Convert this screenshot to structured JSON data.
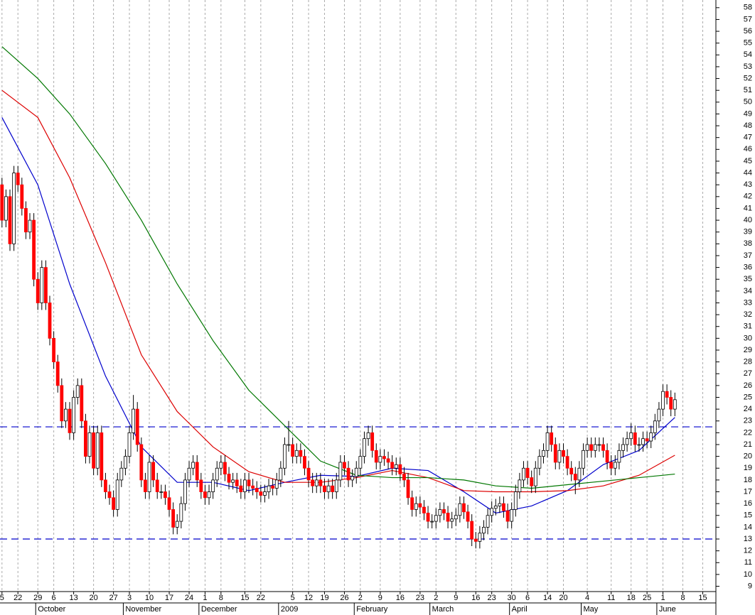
{
  "chart_data": {
    "type": "candlestick",
    "xlim": [
      -0.5,
      179.3
    ],
    "ylim": [
      8.55,
      58.65
    ],
    "yticks": [
      9,
      10,
      11,
      12,
      13,
      14,
      15,
      16,
      17,
      18,
      19,
      20,
      21,
      22,
      23,
      24,
      25,
      26,
      27,
      28,
      29,
      30,
      31,
      32,
      33,
      34,
      35,
      36,
      37,
      38,
      39,
      40,
      41,
      42,
      43,
      44,
      45,
      46,
      47,
      48,
      49,
      50,
      51,
      52,
      53,
      54,
      55,
      56,
      57,
      58
    ],
    "xticks": [
      {
        "value": 0,
        "label": "5"
      },
      {
        "value": 4,
        "label": "22"
      },
      {
        "value": 9,
        "label": "29"
      },
      {
        "value": 13,
        "label": "6"
      },
      {
        "value": 18,
        "label": "13"
      },
      {
        "value": 23,
        "label": "20"
      },
      {
        "value": 28,
        "label": "27"
      },
      {
        "value": 32,
        "label": "3"
      },
      {
        "value": 37,
        "label": "10"
      },
      {
        "value": 42,
        "label": "17"
      },
      {
        "value": 47,
        "label": "24"
      },
      {
        "value": 51,
        "label": "1"
      },
      {
        "value": 55,
        "label": "8"
      },
      {
        "value": 61,
        "label": "15"
      },
      {
        "value": 65,
        "label": "22"
      },
      {
        "value": 73,
        "label": "5"
      },
      {
        "value": 77,
        "label": "12"
      },
      {
        "value": 81,
        "label": "19"
      },
      {
        "value": 86,
        "label": "26"
      },
      {
        "value": 90,
        "label": "2"
      },
      {
        "value": 95,
        "label": "9"
      },
      {
        "value": 100,
        "label": "16"
      },
      {
        "value": 105,
        "label": "23"
      },
      {
        "value": 109,
        "label": "2"
      },
      {
        "value": 114,
        "label": "9"
      },
      {
        "value": 119,
        "label": "16"
      },
      {
        "value": 123,
        "label": "23"
      },
      {
        "value": 128,
        "label": "30"
      },
      {
        "value": 132,
        "label": "6"
      },
      {
        "value": 137,
        "label": "14"
      },
      {
        "value": 141,
        "label": "20"
      },
      {
        "value": 147,
        "label": "4"
      },
      {
        "value": 153,
        "label": "11"
      },
      {
        "value": 158,
        "label": "18"
      },
      {
        "value": 162,
        "label": "25"
      },
      {
        "value": 166,
        "label": "1"
      },
      {
        "value": 171,
        "label": "8"
      },
      {
        "value": 176,
        "label": "15"
      }
    ],
    "month_labels": [
      {
        "value": 9,
        "label": "October"
      },
      {
        "value": 31,
        "label": "November"
      },
      {
        "value": 50,
        "label": "December"
      },
      {
        "value": 70,
        "label": "2009"
      },
      {
        "value": 89,
        "label": "February"
      },
      {
        "value": 108,
        "label": "March"
      },
      {
        "value": 128,
        "label": "April"
      },
      {
        "value": 146,
        "label": "May"
      },
      {
        "value": 165,
        "label": "June"
      }
    ],
    "up_color": "#ffffff",
    "down_color": "#ff0000",
    "grid": true,
    "open": [
      43,
      40,
      42,
      38,
      44,
      43,
      41,
      39,
      40,
      35,
      33,
      36,
      33,
      30,
      28,
      26,
      23,
      24,
      22,
      25,
      26,
      23,
      20,
      22,
      19,
      22,
      18,
      17,
      16.5,
      15.5,
      18,
      19,
      20,
      22,
      24,
      21,
      18,
      17,
      19.5,
      18,
      17,
      17,
      16.5,
      15.5,
      14,
      14.5,
      16,
      18,
      19,
      19.5,
      18,
      17,
      16.5,
      17,
      18,
      19,
      19.5,
      18.5,
      17.8,
      18,
      17.5,
      17,
      18,
      17.5,
      17.3,
      17,
      16.7,
      17,
      17.5,
      17.3,
      18,
      19,
      21,
      21,
      20,
      20.5,
      20,
      19,
      18,
      17.5,
      18,
      17.5,
      17,
      17.5,
      17,
      18,
      19.5,
      19,
      18,
      18.3,
      19,
      20,
      21.5,
      22,
      20.5,
      19.5,
      20,
      19.8,
      19.5,
      19,
      19.3,
      18.5,
      18,
      16.5,
      15.5,
      16,
      15.7,
      15.2,
      14.5,
      14.5,
      15,
      15.5,
      15.2,
      14.5,
      14.7,
      15,
      16,
      15.3,
      14.5,
      13,
      12.8,
      13.5,
      14,
      15,
      15.6,
      15.8,
      16,
      15.4,
      14.5,
      15.5,
      17,
      18,
      19,
      18.2,
      17.5,
      19,
      20,
      20.5,
      22,
      21,
      19.5,
      20.5,
      20,
      19,
      18.5,
      18,
      19,
      20.5,
      21,
      20.5,
      21,
      21,
      20.5,
      19.5,
      19,
      19.5,
      20.5,
      21,
      21.5,
      22,
      21,
      21,
      21.5,
      21.3,
      22,
      23,
      24,
      25.5,
      25,
      24
    ],
    "high": [
      43.6,
      42.6,
      42.6,
      44.6,
      44.6,
      43.6,
      41.6,
      40.6,
      40.6,
      35.6,
      36.6,
      36.6,
      33.6,
      30.6,
      28.6,
      26.6,
      24.6,
      24.6,
      25.6,
      26.6,
      26.6,
      23.6,
      22.6,
      22.6,
      22.6,
      22.6,
      18.6,
      17.6,
      17.1,
      18.6,
      19.6,
      20.6,
      22.6,
      25.2,
      24.6,
      21.6,
      18.6,
      20.1,
      20.1,
      18.6,
      17.6,
      17.6,
      17.1,
      16.1,
      15.1,
      16.6,
      18.6,
      19.6,
      20.1,
      20.1,
      18.6,
      17.6,
      17.6,
      18.6,
      19.6,
      20.1,
      20.1,
      19.1,
      18.6,
      18.6,
      18.1,
      18.6,
      18.6,
      18.1,
      17.9,
      17.6,
      17.6,
      18.1,
      18.1,
      18.6,
      19.6,
      21.6,
      23,
      21.6,
      21.1,
      21.1,
      20.6,
      19.6,
      18.6,
      18.6,
      18.6,
      18.1,
      18.1,
      18.1,
      18.6,
      20.1,
      20.1,
      19.6,
      18.9,
      19.6,
      20.6,
      22.1,
      22.6,
      22.6,
      21.1,
      20.6,
      20.6,
      20.4,
      20.1,
      19.9,
      19.9,
      19.1,
      18.6,
      17.1,
      16.6,
      16.6,
      16.3,
      15.8,
      15.1,
      15.6,
      16.1,
      16.1,
      15.8,
      15.3,
      15.6,
      16.6,
      16.6,
      15.9,
      15.1,
      13.6,
      14.1,
      14.6,
      15.6,
      16.2,
      16.4,
      16.6,
      16.6,
      16,
      16.1,
      17.6,
      18.6,
      19.6,
      19.6,
      18.8,
      19.6,
      20.6,
      21.1,
      22.6,
      22.6,
      21.6,
      21.1,
      21.1,
      20.6,
      19.6,
      19.1,
      19.6,
      21.1,
      21.6,
      21.6,
      21.6,
      21.6,
      21.6,
      21.1,
      20.1,
      20.1,
      21.1,
      21.6,
      22.1,
      22.8,
      22.6,
      21.6,
      22.1,
      22.1,
      22.6,
      23.6,
      24.6,
      26.1,
      26.1,
      25.6,
      25.4
    ],
    "low": [
      39.4,
      39.4,
      37.4,
      37.4,
      42.4,
      40.4,
      38.4,
      38.4,
      34.4,
      32.4,
      32.4,
      32.4,
      29.4,
      27.4,
      25.4,
      22.4,
      22.4,
      21.4,
      21.4,
      24.4,
      22.4,
      19.4,
      19.4,
      18.4,
      18.4,
      17.4,
      16.4,
      15.9,
      14.9,
      14.9,
      17.4,
      18.4,
      19.4,
      21.4,
      20.4,
      17.4,
      16.4,
      16.4,
      17.4,
      16.4,
      16.4,
      15.9,
      14.9,
      13.4,
      13.4,
      13.9,
      15.4,
      17.4,
      18.4,
      17.4,
      16.4,
      15.9,
      15.9,
      16.4,
      17.4,
      18.4,
      17.9,
      17.2,
      17.2,
      16.9,
      16.4,
      16.4,
      16.9,
      16.7,
      16.4,
      16.1,
      16.1,
      16.4,
      16.7,
      16.7,
      17.4,
      18.4,
      20.4,
      19.4,
      19.4,
      19.4,
      18.4,
      17.4,
      16.9,
      16.9,
      16.9,
      16.4,
      16.4,
      16.4,
      16.4,
      17.4,
      18.4,
      17.4,
      17.4,
      17.7,
      18.4,
      19.4,
      20.9,
      19.9,
      18.9,
      18.9,
      19.2,
      18.9,
      18.4,
      18.4,
      17.9,
      17.4,
      15.9,
      14.9,
      14.9,
      15.1,
      14.6,
      13.9,
      13.9,
      13.9,
      14.4,
      14.6,
      13.9,
      13.9,
      14.1,
      14.4,
      14.7,
      13.9,
      12.4,
      12.2,
      12.2,
      12.9,
      13.4,
      14.4,
      15,
      15.2,
      14.8,
      13.9,
      13.9,
      14.9,
      16.4,
      17.4,
      17.6,
      16.9,
      16.9,
      18.4,
      19.4,
      19.9,
      20.4,
      18.9,
      18.9,
      19.4,
      18.4,
      17.9,
      16.8,
      17.4,
      18.4,
      19.9,
      19.9,
      19.9,
      20.4,
      19.9,
      18.9,
      18.4,
      18.4,
      18.9,
      19.9,
      20.4,
      20.9,
      20.4,
      20.4,
      20.4,
      20.7,
      20.7,
      21.4,
      22.4,
      23.4,
      24.4,
      23.4,
      23.4
    ],
    "close": [
      40,
      42,
      38,
      44,
      43,
      41,
      39,
      40,
      35,
      33,
      36,
      33,
      30,
      28,
      26,
      23,
      24,
      22,
      25,
      26,
      23,
      20,
      22,
      19,
      22,
      18,
      17,
      16.5,
      15.5,
      18,
      19,
      20,
      22,
      24,
      21,
      18,
      17,
      19.5,
      18,
      17,
      17,
      16.5,
      15.5,
      14,
      14.5,
      16,
      18,
      19,
      19.5,
      18,
      17,
      16.5,
      17,
      18,
      19,
      19.5,
      18.5,
      17.8,
      18,
      17.5,
      17,
      18,
      17.5,
      17.3,
      17,
      16.7,
      17,
      17.5,
      17.3,
      18,
      19,
      21,
      21,
      20,
      20.5,
      20,
      19,
      18,
      17.5,
      18,
      17.5,
      17,
      17.5,
      17,
      18,
      19.5,
      19,
      18,
      18.3,
      19,
      20,
      21.5,
      22,
      20.5,
      19.5,
      20,
      19.8,
      19.5,
      19,
      19.3,
      18.5,
      18,
      16.5,
      15.5,
      16,
      15.7,
      15.2,
      14.5,
      14.5,
      15,
      15.5,
      15.2,
      14.5,
      14.7,
      15,
      16,
      15.3,
      14.5,
      13,
      12.8,
      13.5,
      14,
      15,
      15.6,
      15.8,
      16,
      15.4,
      14.5,
      15.5,
      17,
      18,
      19,
      18.2,
      17.5,
      19,
      20,
      20.5,
      22,
      21,
      19.5,
      20.5,
      20,
      19,
      18.5,
      18,
      19,
      20.5,
      21,
      20.5,
      21,
      21,
      20.5,
      19.5,
      19,
      19.5,
      20.5,
      21,
      21.5,
      22,
      21,
      21,
      21.5,
      21.3,
      22,
      23,
      24,
      25.5,
      25,
      24,
      24.8
    ],
    "lines": [
      {
        "color": "#0000cc",
        "x": [
          0,
          9,
          17,
          26,
          35,
          44,
          53,
          62,
          71,
          80,
          89,
          98,
          107,
          116,
          124,
          133,
          142,
          151,
          160,
          169
        ],
        "values": [
          48.7,
          43,
          34.6,
          26.8,
          20.8,
          17.8,
          17.8,
          17.1,
          17.8,
          18.4,
          18.3,
          19,
          18.8,
          17,
          15.2,
          15.8,
          17.1,
          19.3,
          20.5,
          23.3
        ]
      },
      {
        "color": "#dd0000",
        "x": [
          0,
          9,
          17,
          26,
          35,
          44,
          53,
          62,
          71,
          80,
          89,
          98,
          107,
          116,
          124,
          133,
          142,
          151,
          160,
          169
        ],
        "values": [
          51,
          48.7,
          43.6,
          36.4,
          28.6,
          23.8,
          20.8,
          18.7,
          17.8,
          17.8,
          18.2,
          18.8,
          18.2,
          17.1,
          17,
          17,
          17.1,
          17.5,
          18.4,
          20.1
        ]
      },
      {
        "color": "#007700",
        "x": [
          0,
          9,
          17,
          26,
          35,
          44,
          53,
          62,
          71,
          80,
          89,
          98,
          107,
          116,
          124,
          133,
          142,
          151,
          160,
          169
        ],
        "values": [
          54.7,
          52,
          49,
          44.8,
          40,
          34.6,
          29.8,
          25.6,
          22.6,
          19.6,
          18.4,
          18.2,
          18.2,
          18,
          17.5,
          17.3,
          17.6,
          17.9,
          18.2,
          18.5
        ]
      }
    ],
    "hlines": [
      22.5,
      13
    ],
    "hline_color": "#0000cc"
  }
}
